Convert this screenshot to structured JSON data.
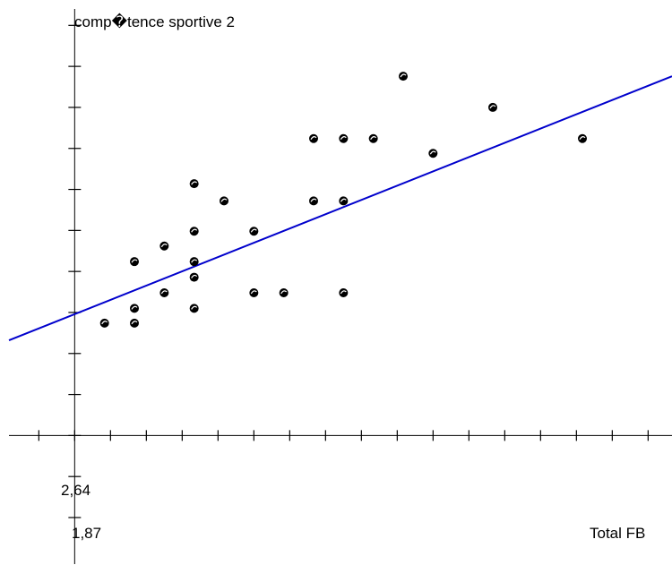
{
  "chart_data": {
    "type": "scatter",
    "title": "",
    "ylabel": "comp�tence sportive 2",
    "xlabel": "Total FB",
    "origin_labels": {
      "x": "1,87",
      "y": "2,64"
    },
    "xlim": [
      1.76,
      2.87
    ],
    "ylim": [
      2.54,
      3.16
    ],
    "x_tick_step": 0.06,
    "y_tick_step": 0.05,
    "points": [
      {
        "x": 1.92,
        "y": 2.777
      },
      {
        "x": 1.97,
        "y": 2.777
      },
      {
        "x": 1.97,
        "y": 2.795
      },
      {
        "x": 1.97,
        "y": 2.852
      },
      {
        "x": 2.02,
        "y": 2.814
      },
      {
        "x": 2.02,
        "y": 2.871
      },
      {
        "x": 2.07,
        "y": 2.795
      },
      {
        "x": 2.07,
        "y": 2.833
      },
      {
        "x": 2.07,
        "y": 2.852
      },
      {
        "x": 2.07,
        "y": 2.889
      },
      {
        "x": 2.07,
        "y": 2.947
      },
      {
        "x": 2.12,
        "y": 2.926
      },
      {
        "x": 2.17,
        "y": 2.814
      },
      {
        "x": 2.17,
        "y": 2.889
      },
      {
        "x": 2.22,
        "y": 2.814
      },
      {
        "x": 2.27,
        "y": 2.926
      },
      {
        "x": 2.27,
        "y": 3.002
      },
      {
        "x": 2.32,
        "y": 2.814
      },
      {
        "x": 2.32,
        "y": 2.926
      },
      {
        "x": 2.32,
        "y": 3.002
      },
      {
        "x": 2.37,
        "y": 3.002
      },
      {
        "x": 2.42,
        "y": 3.078
      },
      {
        "x": 2.47,
        "y": 2.984
      },
      {
        "x": 2.57,
        "y": 3.04
      },
      {
        "x": 2.72,
        "y": 3.002
      }
    ],
    "trend_line": {
      "color": "#0000cc",
      "from": {
        "x": 1.76,
        "y": 2.756
      },
      "to": {
        "x": 2.87,
        "y": 3.078
      }
    },
    "point_color": "#000000",
    "grid": false,
    "legend": "none"
  }
}
